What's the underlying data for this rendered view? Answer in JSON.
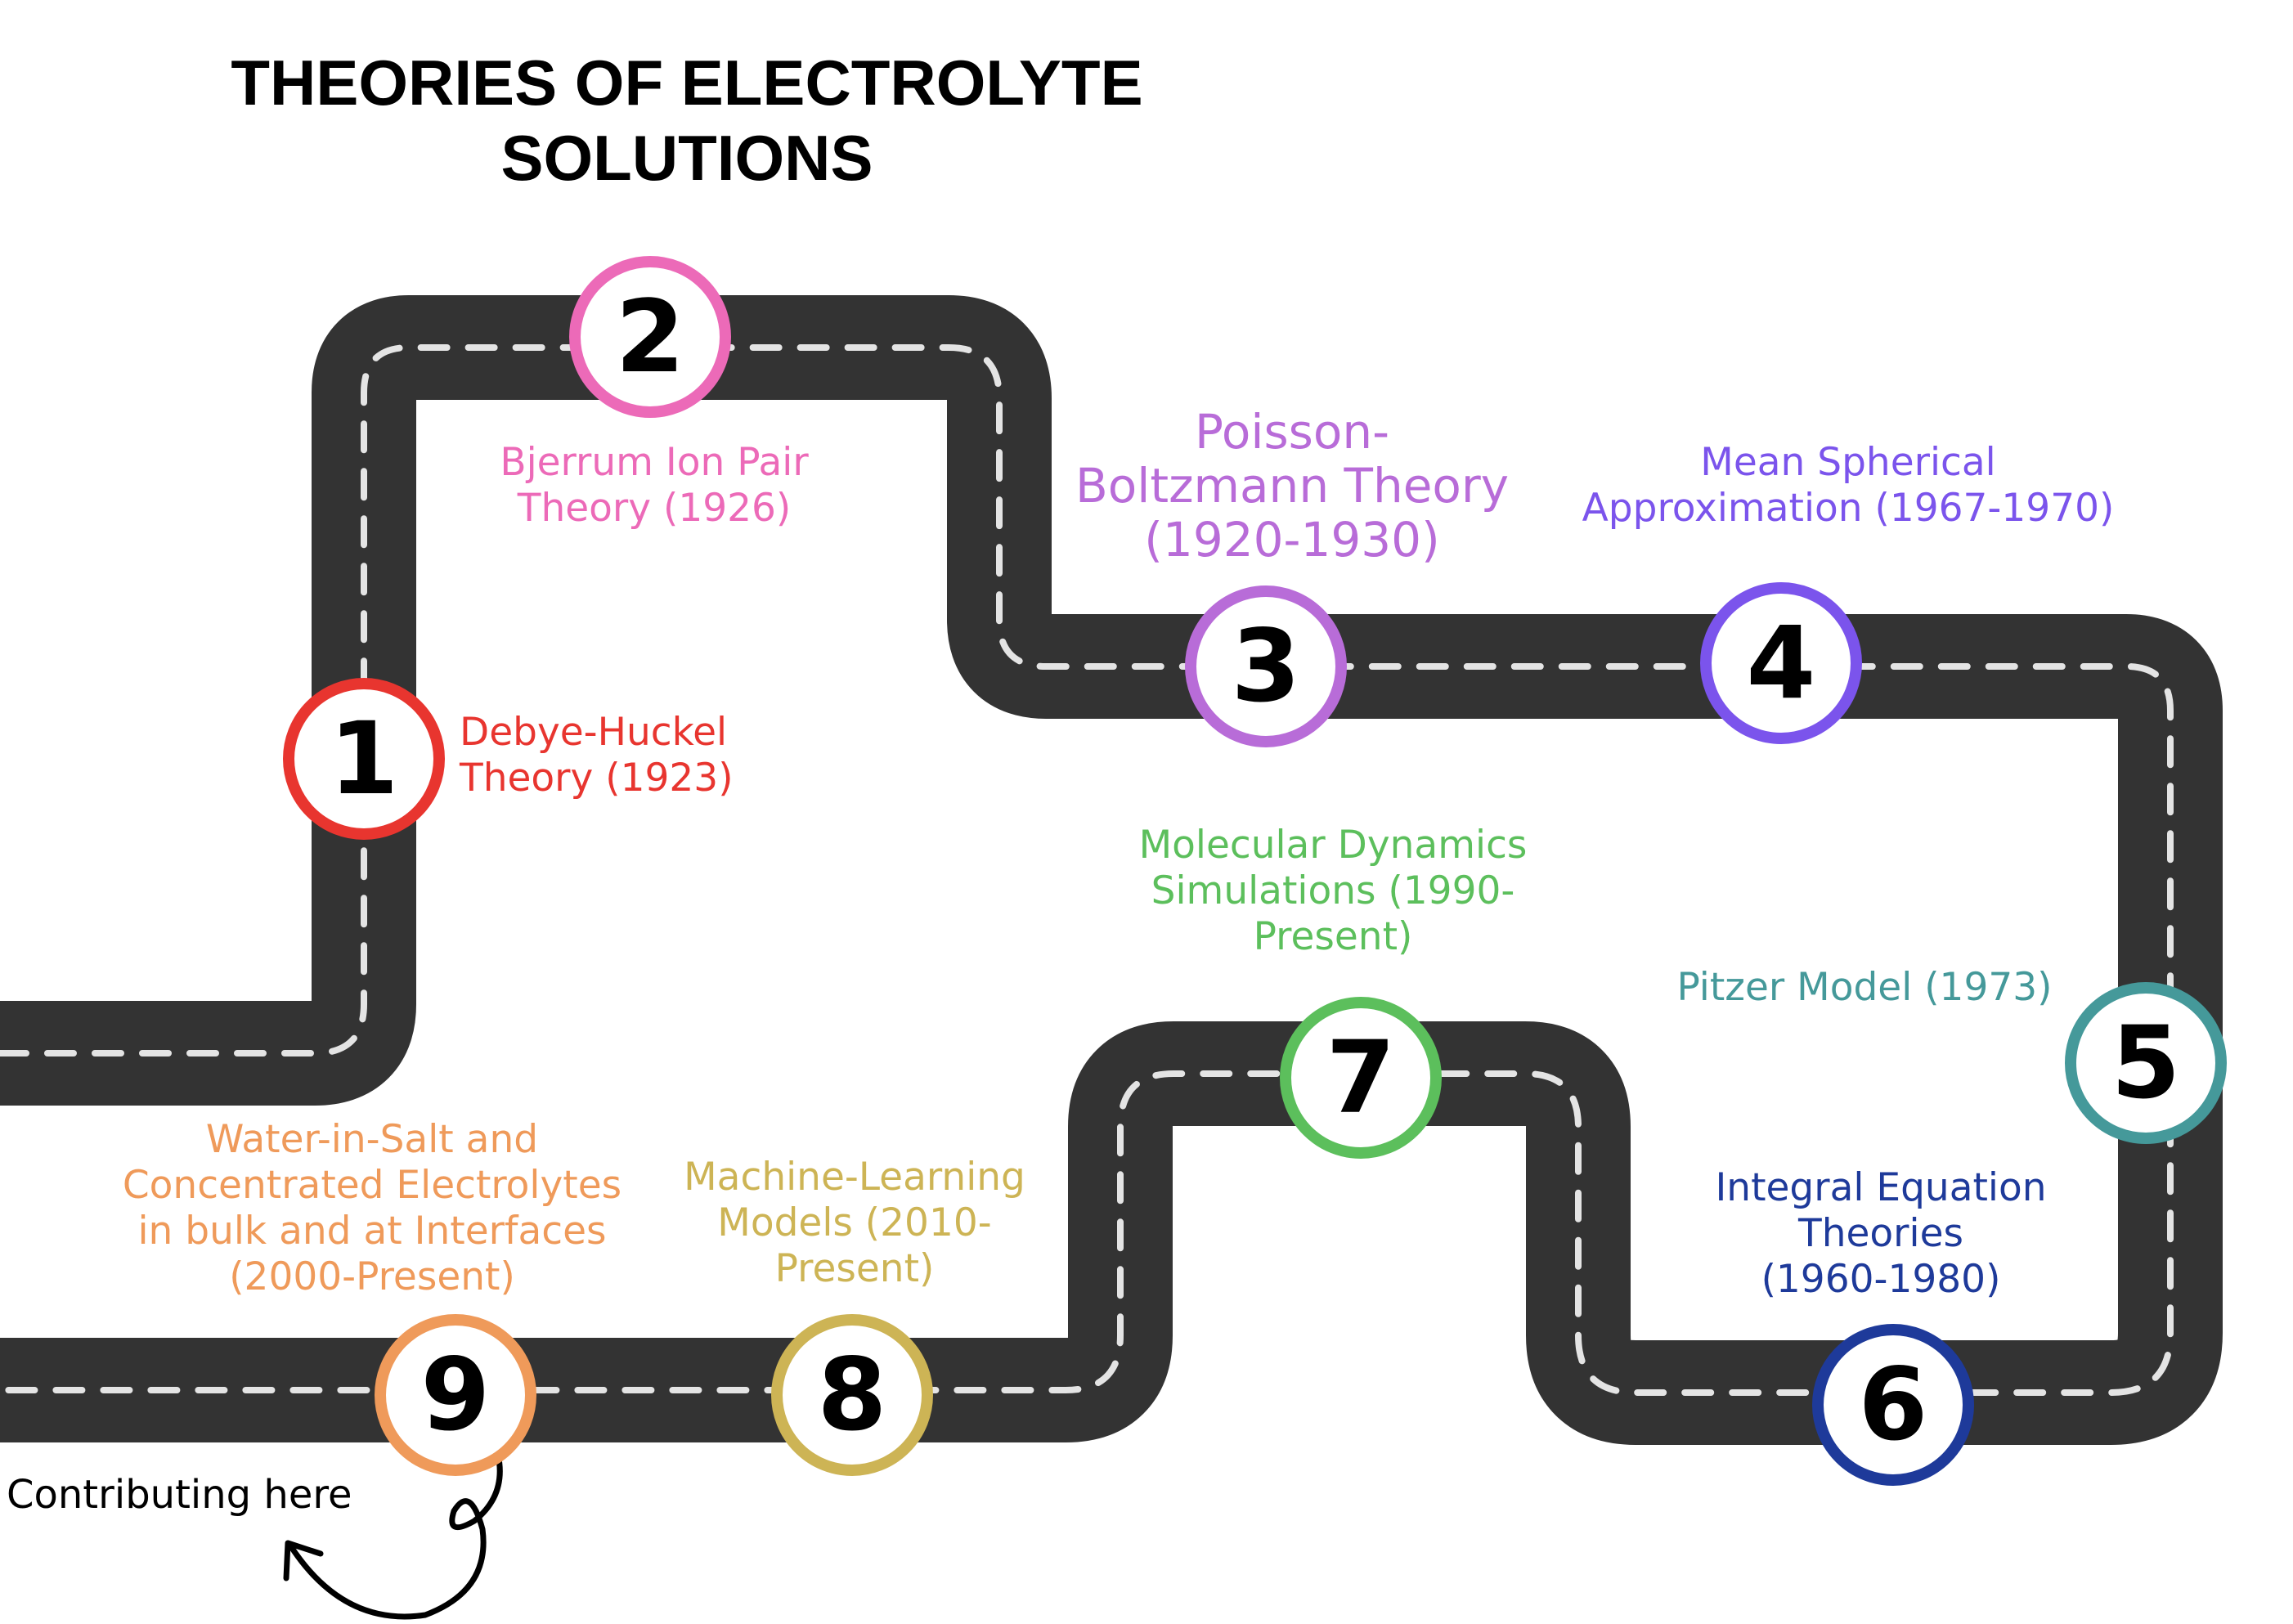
{
  "title": {
    "line1": "THEORIES OF ELECTROLYTE",
    "line2": "SOLUTIONS"
  },
  "colors": {
    "road": "#333333",
    "dash": "#e4e4e4"
  },
  "milestones": [
    {
      "number": "1",
      "label": [
        "Debye-Huckel",
        "Theory (1923)"
      ],
      "color": "#e8352f"
    },
    {
      "number": "2",
      "label": [
        "Bjerrum Ion Pair",
        "Theory (1926)"
      ],
      "color": "#ec6ab8"
    },
    {
      "number": "3",
      "label": [
        "Poisson-",
        "Boltzmann Theory",
        "(1920-1930)"
      ],
      "color": "#b86cd8"
    },
    {
      "number": "4",
      "label": [
        "Mean Spherical",
        "Approximation (1967-1970)"
      ],
      "color": "#7b54ec"
    },
    {
      "number": "5",
      "label": [
        "Pitzer Model (1973)"
      ],
      "color": "#45999a"
    },
    {
      "number": "6",
      "label": [
        "Integral Equation",
        "Theories",
        "(1960-1980)"
      ],
      "color": "#1e3a9a"
    },
    {
      "number": "7",
      "label": [
        "Molecular Dynamics",
        "Simulations (1990-",
        "Present)"
      ],
      "color": "#5cbf5c"
    },
    {
      "number": "8",
      "label": [
        "Machine-Learning",
        "Models (2010-",
        "Present)"
      ],
      "color": "#cdb455"
    },
    {
      "number": "9",
      "label": [
        "Water-in-Salt and",
        "Concentrated Electrolytes",
        "in bulk and at Interfaces",
        "(2000-Present)"
      ],
      "color": "#ef9a5a"
    }
  ],
  "annotation": {
    "text": "Contributing here",
    "icon": "curly-arrow-icon"
  }
}
